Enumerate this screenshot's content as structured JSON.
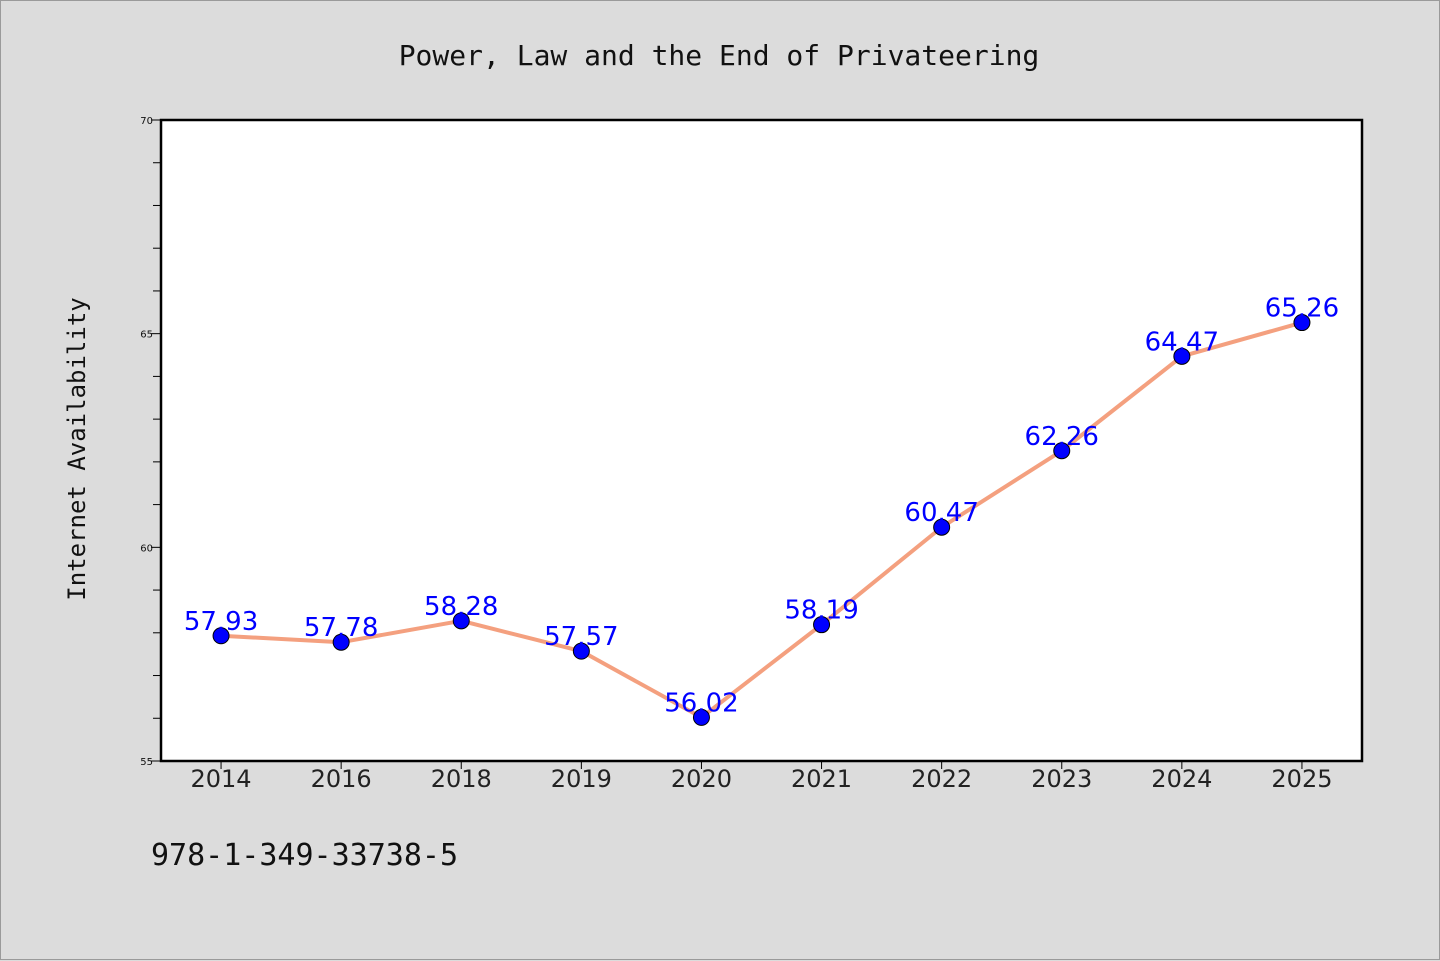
{
  "chart_data": {
    "type": "line",
    "title": "Power, Law and the End of Privateering",
    "xlabel": "",
    "ylabel": "Internet Availability",
    "categories": [
      "2014",
      "2016",
      "2018",
      "2019",
      "2020",
      "2021",
      "2022",
      "2023",
      "2024",
      "2025"
    ],
    "series": [
      {
        "values": [
          57.93,
          57.78,
          58.28,
          57.57,
          56.02,
          58.19,
          60.47,
          62.26,
          64.47,
          65.26
        ],
        "value_labels": [
          "57.93",
          "57.78",
          "58.28",
          "57.57",
          "56.02",
          "58.19",
          "60.47",
          "62.26",
          "64.47",
          "65.26"
        ],
        "line_color": "#f4a07f",
        "marker_color": "#0000ff"
      }
    ],
    "ylim": [
      55,
      70
    ],
    "y_ticks": [
      "55",
      "60",
      "65",
      "70"
    ],
    "grid": false,
    "legend": "none"
  },
  "footer_code": "978-1-349-33738-5",
  "colors": {
    "background": "#dcdcdc",
    "plot_background": "#ffffff",
    "label_color": "#0000ff"
  }
}
